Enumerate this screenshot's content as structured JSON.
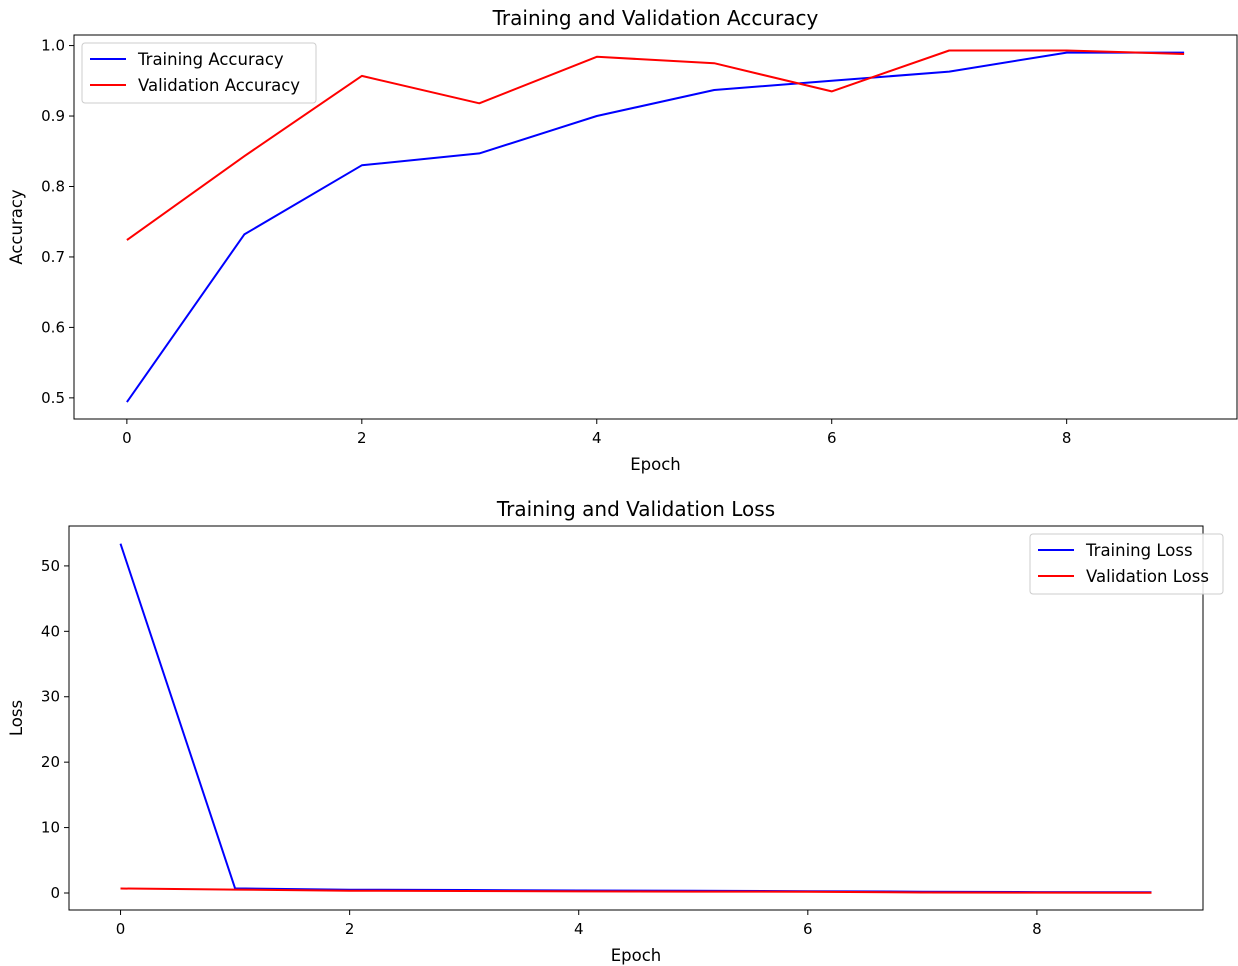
{
  "chart_data": [
    {
      "type": "line",
      "title": "Training and Validation Accuracy",
      "xlabel": "Epoch",
      "ylabel": "Accuracy",
      "x": [
        0,
        1,
        2,
        3,
        4,
        5,
        6,
        7,
        8,
        9
      ],
      "xticks": [
        0,
        2,
        4,
        6,
        8
      ],
      "yticks": [
        0.5,
        0.6,
        0.7,
        0.8,
        0.9,
        1.0
      ],
      "yticklabels": [
        "0.5",
        "0.6",
        "0.7",
        "0.8",
        "0.9",
        "1.0"
      ],
      "xlim": [
        -0.45,
        9.45
      ],
      "ylim": [
        0.47,
        1.015
      ],
      "legend_position": "upper-left",
      "grid": false,
      "series": [
        {
          "name": "Training Accuracy",
          "color": "#0000ff",
          "values": [
            0.494,
            0.732,
            0.83,
            0.847,
            0.9,
            0.937,
            0.95,
            0.963,
            0.99,
            0.99
          ]
        },
        {
          "name": "Validation Accuracy",
          "color": "#ff0000",
          "values": [
            0.724,
            0.843,
            0.957,
            0.918,
            0.984,
            0.975,
            0.935,
            0.993,
            0.993,
            0.988
          ]
        }
      ]
    },
    {
      "type": "line",
      "title": "Training and Validation Loss",
      "xlabel": "Epoch",
      "ylabel": "Loss",
      "x": [
        0,
        1,
        2,
        3,
        4,
        5,
        6,
        7,
        8,
        9
      ],
      "xticks": [
        0,
        2,
        4,
        6,
        8
      ],
      "yticks": [
        0,
        10,
        20,
        30,
        40,
        50
      ],
      "yticklabels": [
        "0",
        "10",
        "20",
        "30",
        "40",
        "50"
      ],
      "xlim": [
        -0.45,
        9.45
      ],
      "ylim": [
        -2.6,
        56.1
      ],
      "legend_position": "upper-right",
      "grid": false,
      "series": [
        {
          "name": "Training Loss",
          "color": "#0000ff",
          "values": [
            53.4,
            0.7,
            0.5,
            0.45,
            0.38,
            0.34,
            0.27,
            0.2,
            0.13,
            0.12
          ]
        },
        {
          "name": "Validation Loss",
          "color": "#ff0000",
          "values": [
            0.68,
            0.52,
            0.35,
            0.3,
            0.25,
            0.22,
            0.2,
            0.08,
            0.06,
            0.05
          ]
        }
      ]
    }
  ]
}
